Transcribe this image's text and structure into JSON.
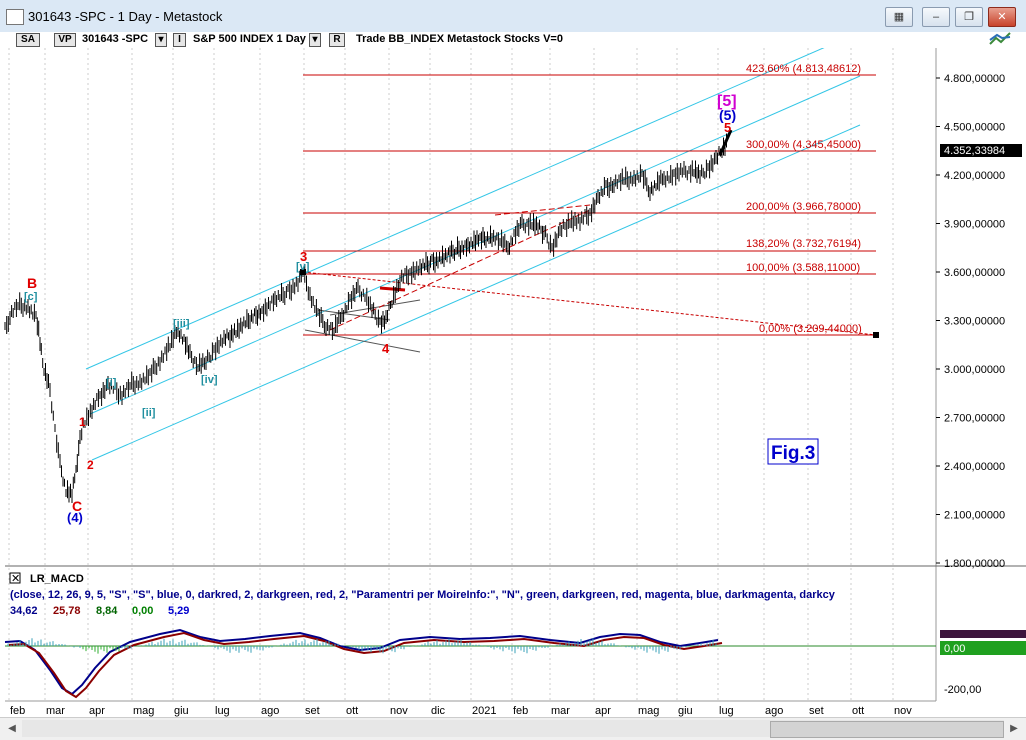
{
  "window": {
    "title": "301643 -SPC - 1 Day - Metastock"
  },
  "toolbar": {
    "sa": "SA",
    "vp": "VP",
    "symbol": "301643 -SPC",
    "i": "I",
    "desc": "S&P 500 INDEX  1 Day",
    "r": "R",
    "trade": "Trade  BB_INDEX  Metastock  Stocks  V=0"
  },
  "price_axis": {
    "labels": [
      "4.800,00000",
      "4.500,00000",
      "4.200,00000",
      "3.900,00000",
      "3.600,00000",
      "3.300,00000",
      "3.000,00000",
      "2.700,00000",
      "2.400,00000",
      "2.100,00000",
      "1.800,00000"
    ],
    "current": "4.352,33984"
  },
  "fib_levels": [
    {
      "label": "423,60% (4.813,48612)"
    },
    {
      "label": "300,00% (4.345,45000)"
    },
    {
      "label": "200,00% (3.966,78000)"
    },
    {
      "label": "138,20% (3.732,76194)"
    },
    {
      "label": "100,00% (3.588,11000)"
    },
    {
      "label": "0,00% (3.209,44000)"
    }
  ],
  "wave_labels": {
    "B": "B",
    "c_bracket": "[c]",
    "C": "C",
    "four_paren": "(4)",
    "one": "1",
    "two": "2",
    "i": "[i]",
    "ii": "[ii]",
    "iii": "[iii]",
    "iv": "[iv]",
    "v": "[v]",
    "three": "3",
    "four": "4",
    "five": "5",
    "five_paren": "(5)",
    "five_bracket": "[5]"
  },
  "fig_label": "Fig.3",
  "macd": {
    "title": "LR_MACD",
    "params": "(close, 12, 26, 9, 5, \"S\", \"S\", blue, 0, darkred, 2, darkgreen, red, 2, \"Paramentri per MoireInfo:\", \"N\", green, darkgreen, red, magenta, blue, darkmagenta, darkcy",
    "values": [
      {
        "v": "34,62",
        "color": "#00008b"
      },
      {
        "v": "25,78",
        "color": "#8b0000"
      },
      {
        "v": "8,84",
        "color": "#006400"
      },
      {
        "v": "0,00",
        "color": "#008000"
      },
      {
        "v": "5,29",
        "color": "#0000cd"
      }
    ],
    "axis": {
      "zero": "0,00",
      "low": "-200,00"
    }
  },
  "x_axis": [
    "feb",
    "mar",
    "apr",
    "mag",
    "giu",
    "lug",
    "ago",
    "set",
    "ott",
    "nov",
    "dic",
    "2021",
    "feb",
    "mar",
    "apr",
    "mag",
    "giu",
    "lug",
    "ago",
    "set",
    "ott",
    "nov"
  ],
  "colors": {
    "channel": "#33c6e6",
    "fib": "#c80000",
    "price": "#000000"
  }
}
